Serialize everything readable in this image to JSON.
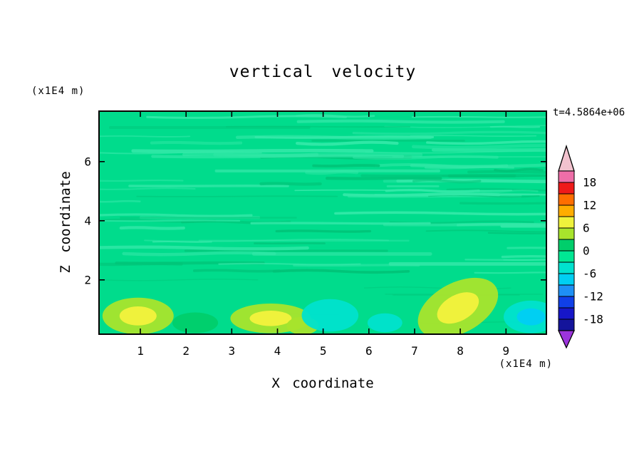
{
  "title": "vertical velocity",
  "header": {
    "time_label": "t=4.5864e+06"
  },
  "axes": {
    "x_label": "X coordinate",
    "z_label": "Z coordinate",
    "x_unit": "(x1E4 m)",
    "z_unit": "(x1E4 m)",
    "x_ticks": [
      1,
      2,
      3,
      4,
      5,
      6,
      7,
      8,
      9
    ],
    "z_ticks": [
      2,
      4,
      6
    ]
  },
  "colorbar": {
    "labels": [
      "18",
      "12",
      "6",
      "0",
      "-6",
      "-12",
      "-18"
    ],
    "over_color": "#F2C2CE",
    "under_color": "#9C34DC",
    "segments": [
      {
        "min": 18,
        "max": 21,
        "color": "#EE6EA8"
      },
      {
        "min": 15,
        "max": 18,
        "color": "#EF1A1A"
      },
      {
        "min": 12,
        "max": 15,
        "color": "#FF6E00"
      },
      {
        "min": 9,
        "max": 12,
        "color": "#FFAD00"
      },
      {
        "min": 6,
        "max": 9,
        "color": "#EFF23C"
      },
      {
        "min": 3,
        "max": 6,
        "color": "#A8E42C"
      },
      {
        "min": 0,
        "max": 3,
        "color": "#00CE6B"
      },
      {
        "min": -3,
        "max": 0,
        "color": "#00E793"
      },
      {
        "min": -6,
        "max": -3,
        "color": "#00E2CE"
      },
      {
        "min": -9,
        "max": -6,
        "color": "#00CFF2"
      },
      {
        "min": -12,
        "max": -9,
        "color": "#1E90F5"
      },
      {
        "min": -15,
        "max": -12,
        "color": "#1040E8"
      },
      {
        "min": -18,
        "max": -15,
        "color": "#1616C8"
      },
      {
        "min": -21,
        "max": -18,
        "color": "#14149B"
      }
    ]
  },
  "colors": {
    "base_green": "#00DC8C",
    "streak_light": "#33E8A8",
    "streak_dark": "#00C478",
    "frame": "#000000",
    "text": "#000000",
    "background": "#FFFFFF"
  },
  "chart_data": {
    "type": "heatmap",
    "title": "vertical velocity",
    "xlabel": "X coordinate",
    "ylabel": "Z coordinate",
    "axis_units": "(x1E4 m)",
    "x_range": [
      0.1,
      9.9
    ],
    "z_range": [
      0.1,
      7.7
    ],
    "time_annotation": "t=4.5864e+06",
    "contour_interval": 3,
    "levels": [
      -21,
      -18,
      -15,
      -12,
      -9,
      -6,
      -3,
      0,
      3,
      6,
      9,
      12,
      15,
      18,
      21
    ],
    "colorbar_tick_labels": [
      18,
      12,
      6,
      0,
      -6,
      -12,
      -18
    ],
    "field_description": "Vertical velocity is near zero (within +/-3) over most of the domain, appearing as thin horizontally streaked green bands for z > 2; below z ~ 2 stronger cells appear: updraft maxima of +6 to +9 near x~1 and x~8, weaker +3 to +6 patches near x~4, and downdraft minima of -3 to -9 near x~5.1, x~6.3 and x~9.5.",
    "features": [
      {
        "x": 0.95,
        "z": 0.78,
        "rx": 0.78,
        "ry": 0.62,
        "levels": [
          3,
          6
        ],
        "label": "updraft maximum +6 to +9"
      },
      {
        "x": 2.2,
        "z": 0.55,
        "rx": 0.5,
        "ry": 0.35,
        "levels": [
          0
        ],
        "label": "weak positive cell 0 to +3"
      },
      {
        "x": 3.85,
        "z": 0.7,
        "rx": 0.88,
        "ry": 0.5,
        "levels": [
          3,
          6
        ],
        "label": "updraft +3 to +9"
      },
      {
        "x": 4.55,
        "z": 0.45,
        "rx": 0.35,
        "ry": 0.3,
        "levels": [
          3
        ],
        "label": "updraft +3 to +6"
      },
      {
        "x": 5.15,
        "z": 0.8,
        "rx": 0.62,
        "ry": 0.55,
        "levels": [
          -6
        ],
        "label": "downdraft -3 to -6"
      },
      {
        "x": 6.35,
        "z": 0.55,
        "rx": 0.38,
        "ry": 0.32,
        "levels": [
          -6
        ],
        "label": "downdraft -3 to -6"
      },
      {
        "x": 7.95,
        "z": 1.05,
        "rx": 0.95,
        "ry": 0.85,
        "levels": [
          3,
          6
        ],
        "rot": -28,
        "label": "updraft maximum +6 to +9"
      },
      {
        "x": 9.55,
        "z": 0.75,
        "rx": 0.6,
        "ry": 0.55,
        "levels": [
          -6,
          -9
        ],
        "label": "downdraft -3 to -9"
      }
    ]
  }
}
